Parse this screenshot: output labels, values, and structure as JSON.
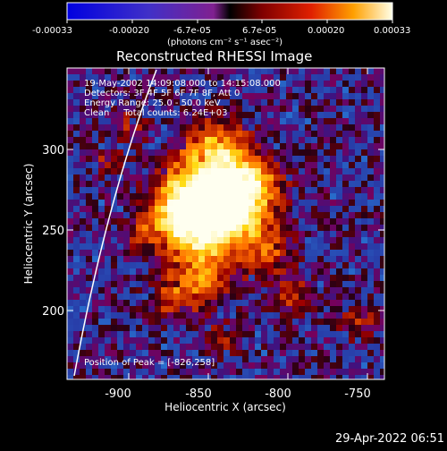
{
  "colorbar": {
    "tick_labels": [
      "-0.00033",
      "-0.00020",
      "-6.7e-05",
      "6.7e-05",
      "0.00020",
      "0.00033"
    ],
    "unit_label": "(photons cm⁻² s⁻¹ asec⁻²)"
  },
  "plot": {
    "title": "Reconstructed RHESSI Image",
    "xlabel": "Heliocentric X (arcsec)",
    "ylabel": "Heliocentric Y (arcsec)",
    "x_ticks": [
      "-900",
      "-850",
      "-800",
      "-750"
    ],
    "y_ticks": [
      "300",
      "250",
      "200"
    ]
  },
  "info": {
    "line1": "19-May-2002 14:09:08.000 to 14:15:08.000",
    "line2": "Detectors: 3F 4F 5F 6F 7F 8F, Att 0",
    "line3": "Energy Range: 25.0 - 50.0 keV",
    "line4": "Clean     Total counts: 6.24E+03",
    "peak": "Position of Peak = [-826,258]"
  },
  "footer": {
    "timestamp": "29-Apr-2022 06:51"
  },
  "colors": {
    "background": "#000000",
    "text": "#ffffff"
  }
}
